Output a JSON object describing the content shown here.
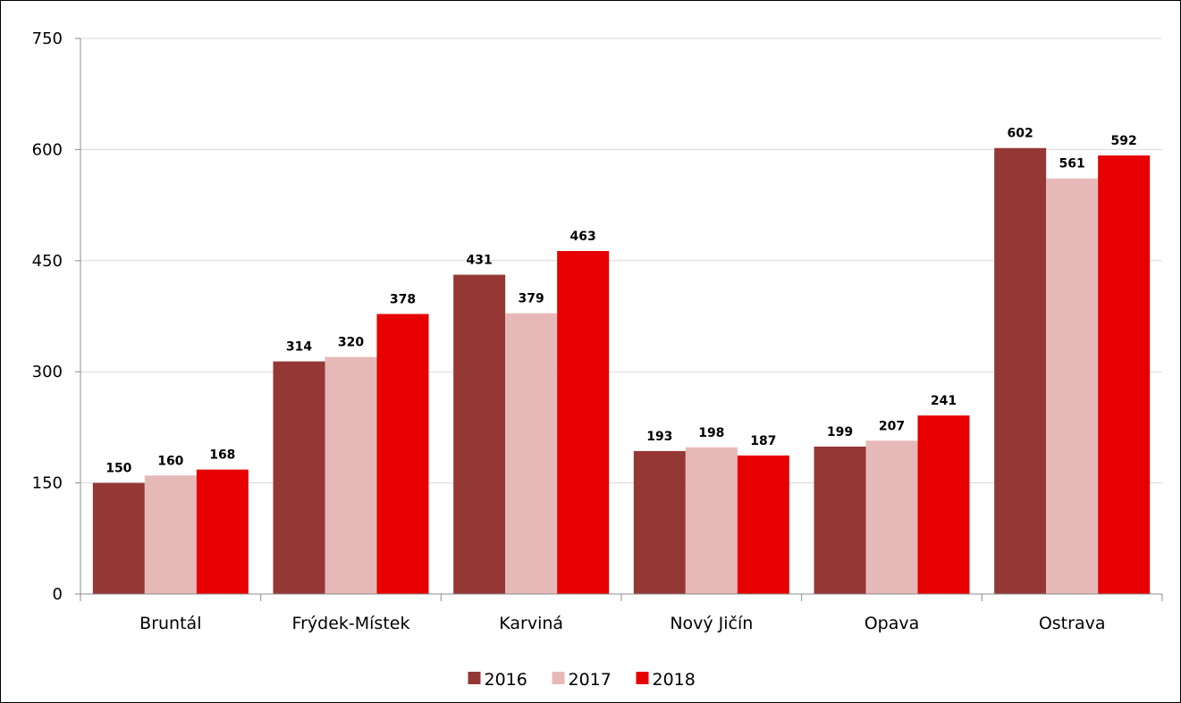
{
  "chart_data": {
    "type": "bar",
    "categories": [
      "Bruntál",
      "Frýdek-Místek",
      "Karviná",
      "Nový Jičín",
      "Opava",
      "Ostrava"
    ],
    "series": [
      {
        "name": "2016",
        "color": "#953735",
        "values": [
          150,
          314,
          431,
          193,
          199,
          602
        ]
      },
      {
        "name": "2017",
        "color": "#e6b9b8",
        "values": [
          160,
          320,
          379,
          198,
          207,
          561
        ]
      },
      {
        "name": "2018",
        "color": "#e60000",
        "values": [
          168,
          378,
          463,
          187,
          241,
          592
        ]
      }
    ],
    "y_ticks": [
      "0",
      "150",
      "300",
      "450",
      "600",
      "750"
    ],
    "ylim": [
      0,
      750
    ],
    "grid": true,
    "legend_position": "bottom",
    "data_labels": true
  }
}
